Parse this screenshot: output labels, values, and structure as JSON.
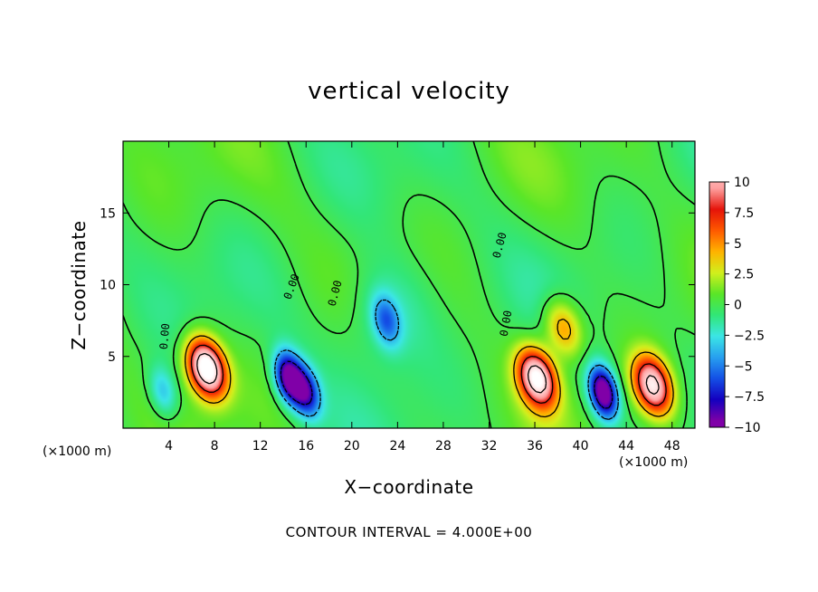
{
  "chart_data": {
    "type": "heatmap",
    "title": "vertical velocity",
    "xlabel": "X−coordinate",
    "ylabel": "Z−coordinate",
    "x_unit": "(×1000 m)",
    "xlim": [
      0,
      50
    ],
    "ylim": [
      0,
      20
    ],
    "x_ticks": [
      4,
      8,
      12,
      16,
      20,
      24,
      28,
      32,
      36,
      40,
      44,
      48
    ],
    "y_ticks": [
      5,
      10,
      15
    ],
    "colorbar": {
      "range": [
        -10,
        10
      ],
      "ticks": [
        "10",
        "7.5",
        "5",
        "2.5",
        "0",
        "−2.5",
        "−5",
        "−7.5",
        "−10"
      ]
    },
    "colors": [
      "#8000a8",
      "#1400c0",
      "#1450e6",
      "#28a0f0",
      "#3ce6e6",
      "#32e678",
      "#5ae628",
      "#d2f01e",
      "#ffb400",
      "#ff5a00",
      "#e6140a",
      "#ffa0a0",
      "#ffffff"
    ],
    "contour_labels": [
      "0.00",
      "0.00",
      "0.00",
      "0.00",
      "0.00"
    ],
    "features": [
      {
        "type": "updraft",
        "x": 7.3,
        "z": 4.2,
        "peak": 16
      },
      {
        "type": "downdraft",
        "x": 14.5,
        "z": 3.5,
        "peak": -11
      },
      {
        "type": "downdraft",
        "x": 16.0,
        "z": 2.5,
        "peak": -8
      },
      {
        "type": "downdraft",
        "x": 23.0,
        "z": 7.5,
        "peak": -5
      },
      {
        "type": "updraft",
        "x": 36.2,
        "z": 3.5,
        "peak": 14
      },
      {
        "type": "updraft",
        "x": 38.5,
        "z": 7.0,
        "peak": 6
      },
      {
        "type": "downdraft",
        "x": 42.0,
        "z": 2.5,
        "peak": -12
      },
      {
        "type": "updraft",
        "x": 46.3,
        "z": 3.0,
        "peak": 13
      },
      {
        "type": "downdraft",
        "x": 3.5,
        "z": 2.5,
        "peak": -4
      }
    ],
    "contour_interval_text": "CONTOUR INTERVAL = 4.000E+00"
  },
  "labels": {
    "title": "vertical velocity",
    "xlabel": "X−coordinate",
    "ylabel": "Z−coordinate",
    "x_unit_left": "(×1000 m)",
    "x_unit_right": "(×1000 m)",
    "footer": "CONTOUR INTERVAL = 4.000E+00"
  }
}
